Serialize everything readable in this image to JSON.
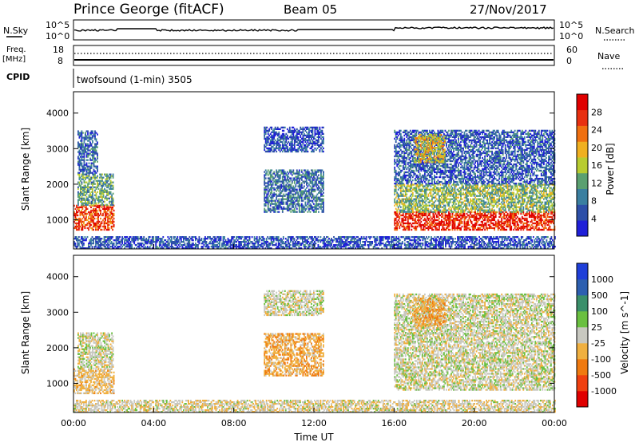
{
  "header": {
    "station": "Prince George (fitACF)",
    "beam": "Beam 05",
    "date": "27/Nov/2017"
  },
  "left_labels": {
    "nsky": "N.Sky",
    "freq_line1": "Freq.",
    "freq_line2": "[MHz]",
    "cpid": "CPID"
  },
  "right_labels": {
    "nsearch": "N.Search",
    "nave": "Nave"
  },
  "panel_nsky": {
    "left_ticks": [
      "10^5",
      "10^0"
    ],
    "right_ticks": [
      "10^5",
      "10^0"
    ]
  },
  "panel_freq": {
    "left_ticks": [
      "18",
      "8"
    ],
    "right_ticks": [
      "60",
      "0"
    ]
  },
  "cpid_text": "twofsound (1-min) 3505",
  "colors": {
    "power_scale": [
      "#1f1fd8",
      "#2d4fa8",
      "#3a7fa0",
      "#5aa070",
      "#b8cc30",
      "#f0b020",
      "#f07010",
      "#e83010",
      "#e00000"
    ],
    "velocity_scale": [
      "#e00000",
      "#f04010",
      "#f07a10",
      "#f0b040",
      "#c8c8c0",
      "#6ac040",
      "#3a8f6a",
      "#2d5fb0",
      "#1f3fd8"
    ]
  },
  "chart_data": [
    {
      "type": "heatmap",
      "title": "Power",
      "ylabel": "Slant Range [km]",
      "xlabel": "",
      "y_ticks": [
        "1000",
        "2000",
        "3000",
        "4000"
      ],
      "ylim": [
        180,
        4600
      ],
      "xlim": [
        0,
        24
      ],
      "colorbar_label": "Power [dB]",
      "colorbar_ticks": [
        "4",
        "8",
        "12",
        "16",
        "20",
        "24",
        "28"
      ],
      "colorbar_range": [
        0,
        32
      ],
      "echo_regions": [
        {
          "t": [
            0.0,
            2.0
          ],
          "range": [
            700,
            1400
          ],
          "value": 26
        },
        {
          "t": [
            0.2,
            2.0
          ],
          "range": [
            1400,
            2300
          ],
          "value": 12
        },
        {
          "t": [
            0.2,
            1.2
          ],
          "range": [
            2300,
            3500
          ],
          "value": 6
        },
        {
          "t": [
            0.0,
            24.0
          ],
          "range": [
            180,
            500
          ],
          "value": 5
        },
        {
          "t": [
            9.5,
            12.5
          ],
          "range": [
            1200,
            2400
          ],
          "value": 8
        },
        {
          "t": [
            9.5,
            12.5
          ],
          "range": [
            2900,
            3600
          ],
          "value": 5
        },
        {
          "t": [
            16.0,
            24.0
          ],
          "range": [
            700,
            1200
          ],
          "value": 28
        },
        {
          "t": [
            16.0,
            24.0
          ],
          "range": [
            1200,
            2000
          ],
          "value": 14
        },
        {
          "t": [
            16.0,
            24.0
          ],
          "range": [
            2000,
            3500
          ],
          "value": 6
        },
        {
          "t": [
            17.0,
            18.5
          ],
          "range": [
            2600,
            3400
          ],
          "value": 18
        }
      ]
    },
    {
      "type": "heatmap",
      "title": "Velocity",
      "ylabel": "Slant Range [km]",
      "xlabel": "Time UT",
      "x_ticks": [
        "00:00",
        "04:00",
        "08:00",
        "12:00",
        "16:00",
        "20:00",
        "00:00"
      ],
      "y_ticks": [
        "1000",
        "2000",
        "3000",
        "4000"
      ],
      "ylim": [
        180,
        4600
      ],
      "xlim": [
        0,
        24
      ],
      "colorbar_label": "Velocity [m s^-1]",
      "colorbar_ticks": [
        "1000",
        "500",
        "100",
        "25",
        "-25",
        "-100",
        "-500",
        "-1000"
      ],
      "colorbar_range": [
        -1200,
        1200
      ],
      "echo_regions": [
        {
          "t": [
            0.0,
            2.0
          ],
          "range": [
            700,
            1400
          ],
          "value": -200
        },
        {
          "t": [
            0.2,
            2.0
          ],
          "range": [
            1400,
            2400
          ],
          "value": 0
        },
        {
          "t": [
            0.0,
            24.0
          ],
          "range": [
            180,
            500
          ],
          "value": -60
        },
        {
          "t": [
            9.5,
            12.5
          ],
          "range": [
            1200,
            2400
          ],
          "value": -300
        },
        {
          "t": [
            9.5,
            12.5
          ],
          "range": [
            2900,
            3600
          ],
          "value": 0
        },
        {
          "t": [
            16.0,
            24.0
          ],
          "range": [
            800,
            2400
          ],
          "value": 0
        },
        {
          "t": [
            16.0,
            24.0
          ],
          "range": [
            2400,
            3500
          ],
          "value": 0
        },
        {
          "t": [
            17.0,
            18.5
          ],
          "range": [
            2600,
            3400
          ],
          "value": -300
        }
      ]
    }
  ]
}
